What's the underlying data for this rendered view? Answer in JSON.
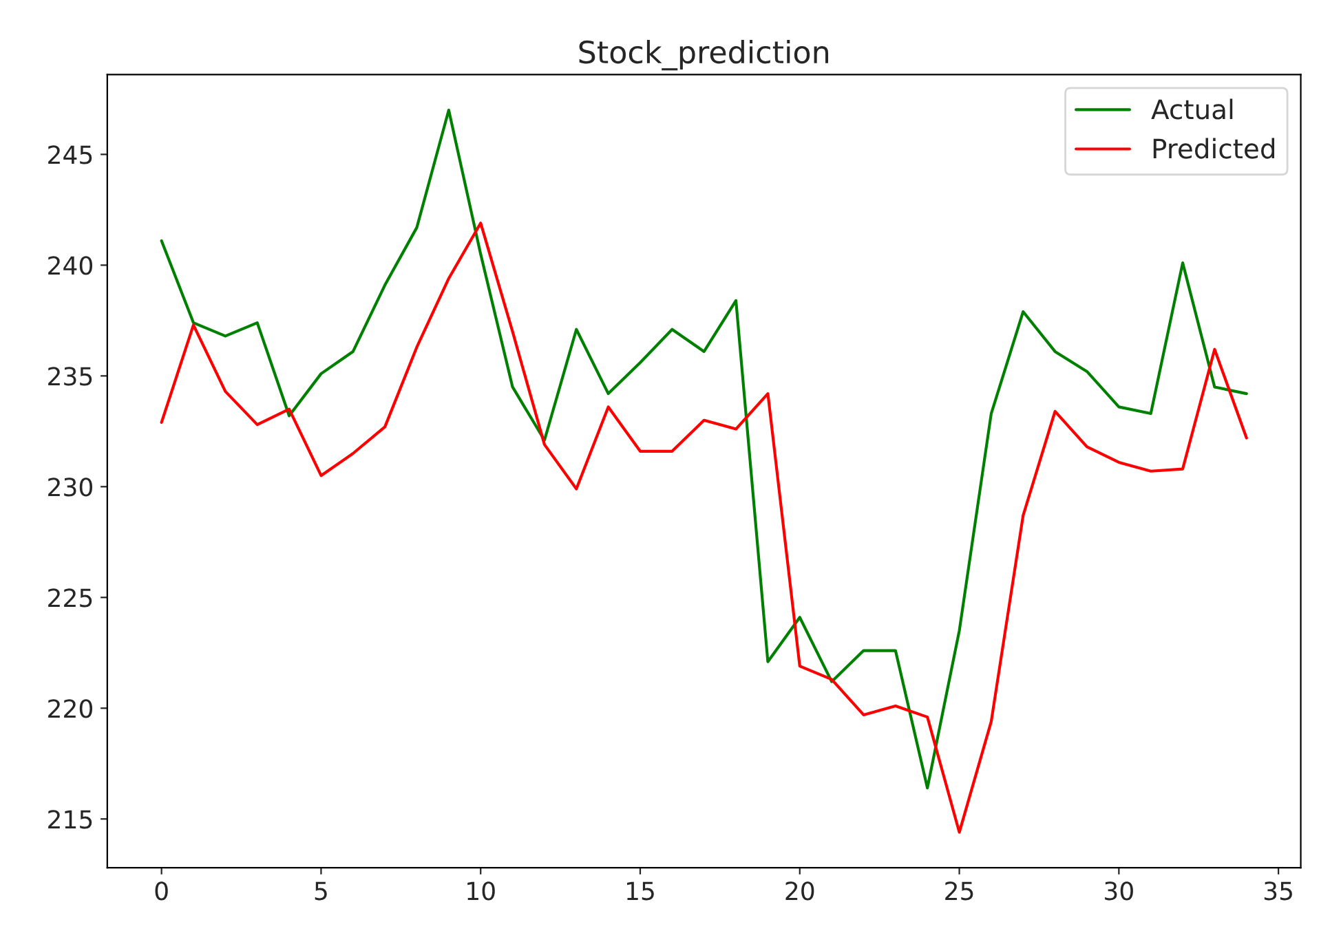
{
  "chart_data": {
    "type": "line",
    "title": "Stock_prediction",
    "x": [
      0,
      1,
      2,
      3,
      4,
      5,
      6,
      7,
      8,
      9,
      10,
      11,
      12,
      13,
      14,
      15,
      16,
      17,
      18,
      19,
      20,
      21,
      22,
      23,
      24,
      25,
      26,
      27,
      28,
      29,
      30,
      31,
      32,
      33,
      34
    ],
    "series": [
      {
        "name": "Actual",
        "color": "#008000",
        "values": [
          241.1,
          237.4,
          236.8,
          237.4,
          233.2,
          235.1,
          236.1,
          239.1,
          241.7,
          247.0,
          240.5,
          234.5,
          232.1,
          237.1,
          234.2,
          235.6,
          237.1,
          236.1,
          238.4,
          222.1,
          224.1,
          221.2,
          222.6,
          222.6,
          216.4,
          223.5,
          233.3,
          237.9,
          236.1,
          235.2,
          233.6,
          233.3,
          240.1,
          234.5,
          234.2
        ]
      },
      {
        "name": "Predicted",
        "color": "#ff0000",
        "values": [
          232.9,
          237.3,
          234.3,
          232.8,
          233.5,
          230.5,
          231.5,
          232.7,
          236.3,
          239.4,
          241.9,
          237.0,
          231.9,
          229.9,
          233.6,
          231.6,
          231.6,
          233.0,
          232.6,
          234.2,
          221.9,
          221.3,
          219.7,
          220.1,
          219.6,
          214.4,
          219.4,
          228.7,
          233.4,
          231.8,
          231.1,
          230.7,
          230.8,
          236.2,
          232.2
        ]
      }
    ],
    "xlim": [
      -1.7,
      35.7
    ],
    "xticks": [
      0,
      5,
      10,
      15,
      20,
      25,
      30,
      35
    ],
    "ylim": [
      212.8,
      248.6
    ],
    "yticks": [
      215,
      220,
      225,
      230,
      235,
      240,
      245
    ],
    "legend": "top right",
    "grid": false
  }
}
